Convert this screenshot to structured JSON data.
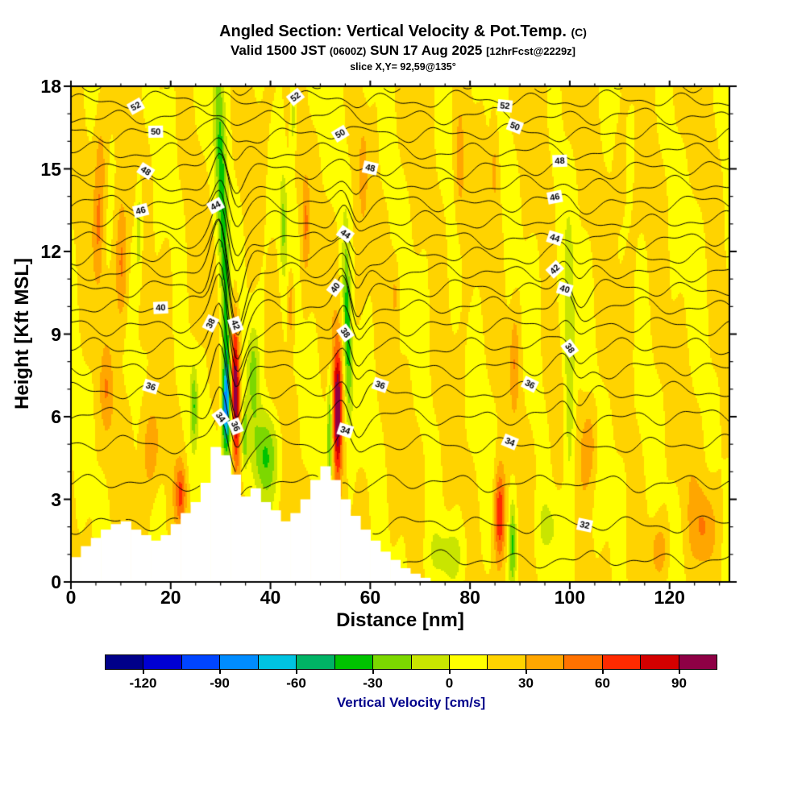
{
  "title": {
    "main": "Angled Section: Vertical Velocity & Pot.Temp.",
    "main_unit": "(C)",
    "valid_prefix": "Valid 1500 JST",
    "valid_zulu": "(0600Z)",
    "valid_date": "SUN 17 Aug 2025",
    "fcst_tag": "[12hrFcst@2229z]",
    "slice": "slice X,Y= 92,59@135°"
  },
  "chart_data": {
    "type": "heatmap",
    "title": "Angled Section: Vertical Velocity & Pot.Temp. (C)",
    "subtitle": "Valid 1500 JST (0600Z) SUN 17 Aug 2025 [12hrFcst@2229z]",
    "slice_annotation": "slice X,Y= 92,59@135°",
    "xlabel": "Distance [nm]",
    "ylabel": "Height [Kft MSL]",
    "xlim": [
      0,
      132
    ],
    "ylim": [
      0,
      18
    ],
    "x_ticks": [
      0,
      20,
      40,
      60,
      80,
      100,
      120
    ],
    "y_ticks": [
      0,
      3,
      6,
      9,
      12,
      15,
      18
    ],
    "grid": false,
    "fill_field_name": "Vertical Velocity",
    "fill_units": "cm/s",
    "fill_level_min": -135,
    "fill_level_step": 15,
    "fill_colors": [
      "#000089",
      "#0000d2",
      "#0045ff",
      "#008cff",
      "#00c3e1",
      "#00b365",
      "#00c300",
      "#7cd800",
      "#c9e500",
      "#ffff00",
      "#ffd300",
      "#ffa600",
      "#ff7200",
      "#ff2a00",
      "#d40000",
      "#8e0045"
    ],
    "colorbar_label": "Vertical Velocity [cm/s]",
    "colorbar_ticks": [
      -120,
      -90,
      -60,
      -30,
      0,
      30,
      60,
      90
    ],
    "colorbar_label_color": "#00008b",
    "contour_field_name": "Potential Temperature (C)",
    "contour_interval": 1,
    "contour_min": 31,
    "contour_max": 53,
    "theta_height_profile_c_kft": [
      [
        31,
        0.8
      ],
      [
        32,
        2.1
      ],
      [
        33,
        3.6
      ],
      [
        34,
        5.0
      ],
      [
        35,
        6.0
      ],
      [
        36,
        6.9
      ],
      [
        37,
        7.75
      ],
      [
        38,
        8.55
      ],
      [
        39,
        9.3
      ],
      [
        40,
        10.0
      ],
      [
        41,
        10.65
      ],
      [
        42,
        11.25
      ],
      [
        43,
        11.85
      ],
      [
        44,
        12.45
      ],
      [
        45,
        13.1
      ],
      [
        46,
        13.75
      ],
      [
        47,
        14.4
      ],
      [
        48,
        15.0
      ],
      [
        49,
        15.65
      ],
      [
        50,
        16.3
      ],
      [
        51,
        16.9
      ],
      [
        52,
        17.5
      ],
      [
        53,
        18.15
      ]
    ],
    "contour_labels": [
      {
        "level": 32,
        "xs": [
          103
        ]
      },
      {
        "level": 34,
        "xs": [
          30,
          55,
          88
        ]
      },
      {
        "level": 36,
        "xs": [
          16,
          33,
          62,
          92
        ]
      },
      {
        "level": 38,
        "xs": [
          28,
          55,
          100
        ]
      },
      {
        "level": 40,
        "xs": [
          18,
          53,
          99
        ]
      },
      {
        "level": 42,
        "xs": [
          33,
          97
        ]
      },
      {
        "level": 44,
        "xs": [
          29,
          55,
          97
        ]
      },
      {
        "level": 46,
        "xs": [
          14,
          97
        ]
      },
      {
        "level": 48,
        "xs": [
          15,
          60,
          98
        ]
      },
      {
        "level": 50,
        "xs": [
          17,
          54,
          89
        ]
      },
      {
        "level": 52,
        "xs": [
          13,
          45,
          87
        ]
      }
    ],
    "terrain_step_nm": 2,
    "terrain_heights_kft": [
      0.9,
      1.3,
      1.6,
      1.9,
      2.1,
      2.2,
      1.9,
      1.7,
      1.5,
      1.7,
      2.1,
      2.5,
      2.9,
      3.6,
      4.9,
      4.6,
      3.9,
      3.1,
      3.4,
      2.9,
      2.6,
      2.2,
      2.5,
      3.0,
      3.7,
      4.2,
      3.7,
      3.0,
      2.4,
      1.9,
      1.5,
      1.1,
      0.8,
      0.5,
      0.3,
      0.15,
      0
    ],
    "velocity_features": [
      {
        "cx": 30.6,
        "cy": 12.0,
        "sx": 1.1,
        "sy": 8.0,
        "amp": -55,
        "tilt": -0.18
      },
      {
        "cx": 31.0,
        "cy": 6.3,
        "sx": 0.8,
        "sy": 1.8,
        "amp": -85
      },
      {
        "cx": 32.9,
        "cy": 7.0,
        "sx": 0.85,
        "sy": 2.8,
        "amp": 95,
        "tilt": -0.05
      },
      {
        "cx": 34.8,
        "cy": 5.3,
        "sx": 0.6,
        "sy": 1.1,
        "amp": -40
      },
      {
        "cx": 39.0,
        "cy": 4.6,
        "sx": 2.8,
        "sy": 1.6,
        "amp": -46
      },
      {
        "cx": 36.5,
        "cy": 7.5,
        "sx": 1.2,
        "sy": 1.8,
        "amp": -34
      },
      {
        "cx": 42.5,
        "cy": 13.0,
        "sx": 0.7,
        "sy": 1.8,
        "amp": -30
      },
      {
        "cx": 44.0,
        "cy": 10.0,
        "sx": 0.7,
        "sy": 1.4,
        "amp": 32
      },
      {
        "cx": 44.5,
        "cy": 17.0,
        "sx": 0.6,
        "sy": 1.5,
        "amp": -30
      },
      {
        "cx": 47.0,
        "cy": 13.0,
        "sx": 0.7,
        "sy": 1.6,
        "amp": 26
      },
      {
        "cx": 53.4,
        "cy": 6.2,
        "sx": 0.85,
        "sy": 2.4,
        "amp": 95
      },
      {
        "cx": 51.8,
        "cy": 5.5,
        "sx": 0.5,
        "sy": 2.0,
        "amp": -45
      },
      {
        "cx": 55.4,
        "cy": 9.0,
        "sx": 0.8,
        "sy": 3.5,
        "amp": -52,
        "tilt": -0.1
      },
      {
        "cx": 22.0,
        "cy": 3.2,
        "sx": 1.1,
        "sy": 1.1,
        "amp": 46
      },
      {
        "cx": 24.6,
        "cy": 6.4,
        "sx": 0.7,
        "sy": 1.4,
        "amp": -38
      },
      {
        "cx": 16.0,
        "cy": 4.8,
        "sx": 1.8,
        "sy": 1.6,
        "amp": 26
      },
      {
        "cx": 10.2,
        "cy": 11.5,
        "sx": 1.3,
        "sy": 2.4,
        "amp": 42
      },
      {
        "cx": 5.5,
        "cy": 12.5,
        "sx": 1.0,
        "sy": 2.0,
        "amp": 28
      },
      {
        "cx": 6.0,
        "cy": 15.0,
        "sx": 1.2,
        "sy": 2.0,
        "amp": 24
      },
      {
        "cx": 13.6,
        "cy": 12.8,
        "sx": 0.7,
        "sy": 1.8,
        "amp": -32
      },
      {
        "cx": 7.0,
        "cy": 7.0,
        "sx": 1.2,
        "sy": 1.5,
        "amp": 22
      },
      {
        "cx": 86.0,
        "cy": 2.4,
        "sx": 1.1,
        "sy": 1.7,
        "amp": 60
      },
      {
        "cx": 88.6,
        "cy": 1.4,
        "sx": 0.7,
        "sy": 1.6,
        "amp": -44
      },
      {
        "cx": 100.0,
        "cy": 7.5,
        "sx": 1.1,
        "sy": 4.5,
        "amp": -36
      },
      {
        "cx": 104.0,
        "cy": 5.0,
        "sx": 1.6,
        "sy": 1.6,
        "amp": 26
      },
      {
        "cx": 127.0,
        "cy": 2.0,
        "sx": 2.4,
        "sy": 1.4,
        "amp": 30
      },
      {
        "cx": 118.0,
        "cy": 1.2,
        "sx": 2.0,
        "sy": 1.0,
        "amp": 22
      },
      {
        "cx": 78.0,
        "cy": 15.0,
        "sx": 1.1,
        "sy": 2.2,
        "amp": 24
      },
      {
        "cx": 85.0,
        "cy": 15.5,
        "sx": 0.9,
        "sy": 2.0,
        "amp": 20
      },
      {
        "cx": 89.0,
        "cy": 8.0,
        "sx": 0.9,
        "sy": 1.8,
        "amp": 26
      },
      {
        "cx": 65.0,
        "cy": 10.5,
        "sx": 0.9,
        "sy": 1.4,
        "amp": 22
      },
      {
        "cx": 58.5,
        "cy": 15.0,
        "sx": 0.8,
        "sy": 1.6,
        "amp": 20
      },
      {
        "cx": 110.0,
        "cy": 15.0,
        "sx": 1.3,
        "sy": 1.8,
        "amp": 18
      },
      {
        "cx": 76.0,
        "cy": 1.0,
        "sx": 4.0,
        "sy": 1.1,
        "amp": -20
      },
      {
        "cx": 96.0,
        "cy": 2.0,
        "sx": 3.0,
        "sy": 1.2,
        "amp": -16
      }
    ],
    "wave_folds": [
      {
        "x_center": 31.5,
        "width": 2.6,
        "amplitude": 4.2,
        "level_center": 40,
        "level_width": 8
      },
      {
        "x_center": 56.0,
        "width": 2.3,
        "amplitude": 1.8,
        "level_center": 40,
        "level_width": 7
      },
      {
        "x_center": 100.5,
        "width": 2.6,
        "amplitude": 1.1,
        "level_center": 39,
        "level_width": 6
      }
    ]
  }
}
